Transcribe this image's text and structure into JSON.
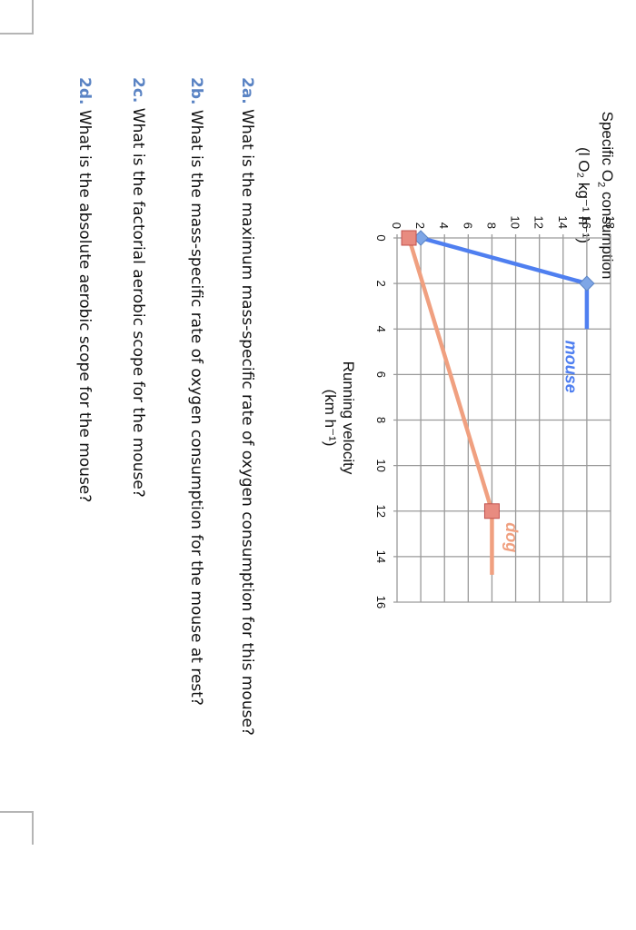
{
  "chart_data": {
    "type": "line",
    "title": "",
    "xlabel": "Running velocity (km h-1)",
    "ylabel": "Specific O2 consumption (l O2 kg-1 h-1)",
    "xlim": [
      0,
      16
    ],
    "ylim": [
      0,
      18
    ],
    "xticks": [
      0,
      2,
      4,
      6,
      8,
      10,
      12,
      14,
      16
    ],
    "yticks": [
      0,
      2,
      4,
      6,
      8,
      10,
      12,
      14,
      16,
      18
    ],
    "grid": true,
    "series": [
      {
        "name": "mouse",
        "color": "#4f7ff0",
        "marker": "diamond",
        "points": [
          [
            0,
            2
          ],
          [
            2,
            16
          ]
        ],
        "plateau": [
          [
            2,
            16
          ],
          [
            4,
            16
          ]
        ]
      },
      {
        "name": "dog",
        "color": "#f0a080",
        "marker": "square",
        "points": [
          [
            0,
            1
          ],
          [
            12,
            8
          ]
        ],
        "plateau": [
          [
            12,
            8
          ],
          [
            14.8,
            8
          ]
        ]
      }
    ],
    "annotations": [
      {
        "text": "mouse",
        "x": 4.5,
        "y": 14.2,
        "color": "#4f7ff0"
      },
      {
        "text": "dog",
        "x": 12.5,
        "y": 9.2,
        "color": "#f0a080"
      }
    ]
  },
  "axis": {
    "y_title_line1_pre": "Specific O",
    "y_title_line1_sub": "2",
    "y_title_line1_post": " consumption",
    "y_title_line2": "(l O₂ kg⁻¹ h⁻¹)",
    "x_title_line1": "Running velocity",
    "x_title_line2": "(km h⁻¹)"
  },
  "questions": [
    {
      "label": "2a.",
      "text": " What is the maximum mass-specific rate of oxygen consumption for this mouse?"
    },
    {
      "label": "2b.",
      "text": " What is the mass-specific rate of oxygen consumption for the mouse at rest?"
    },
    {
      "label": "2c.",
      "text": " What is the factorial aerobic scope for the mouse?"
    },
    {
      "label": "2d.",
      "text": " What is the absolute aerobic scope for the mouse?"
    }
  ]
}
